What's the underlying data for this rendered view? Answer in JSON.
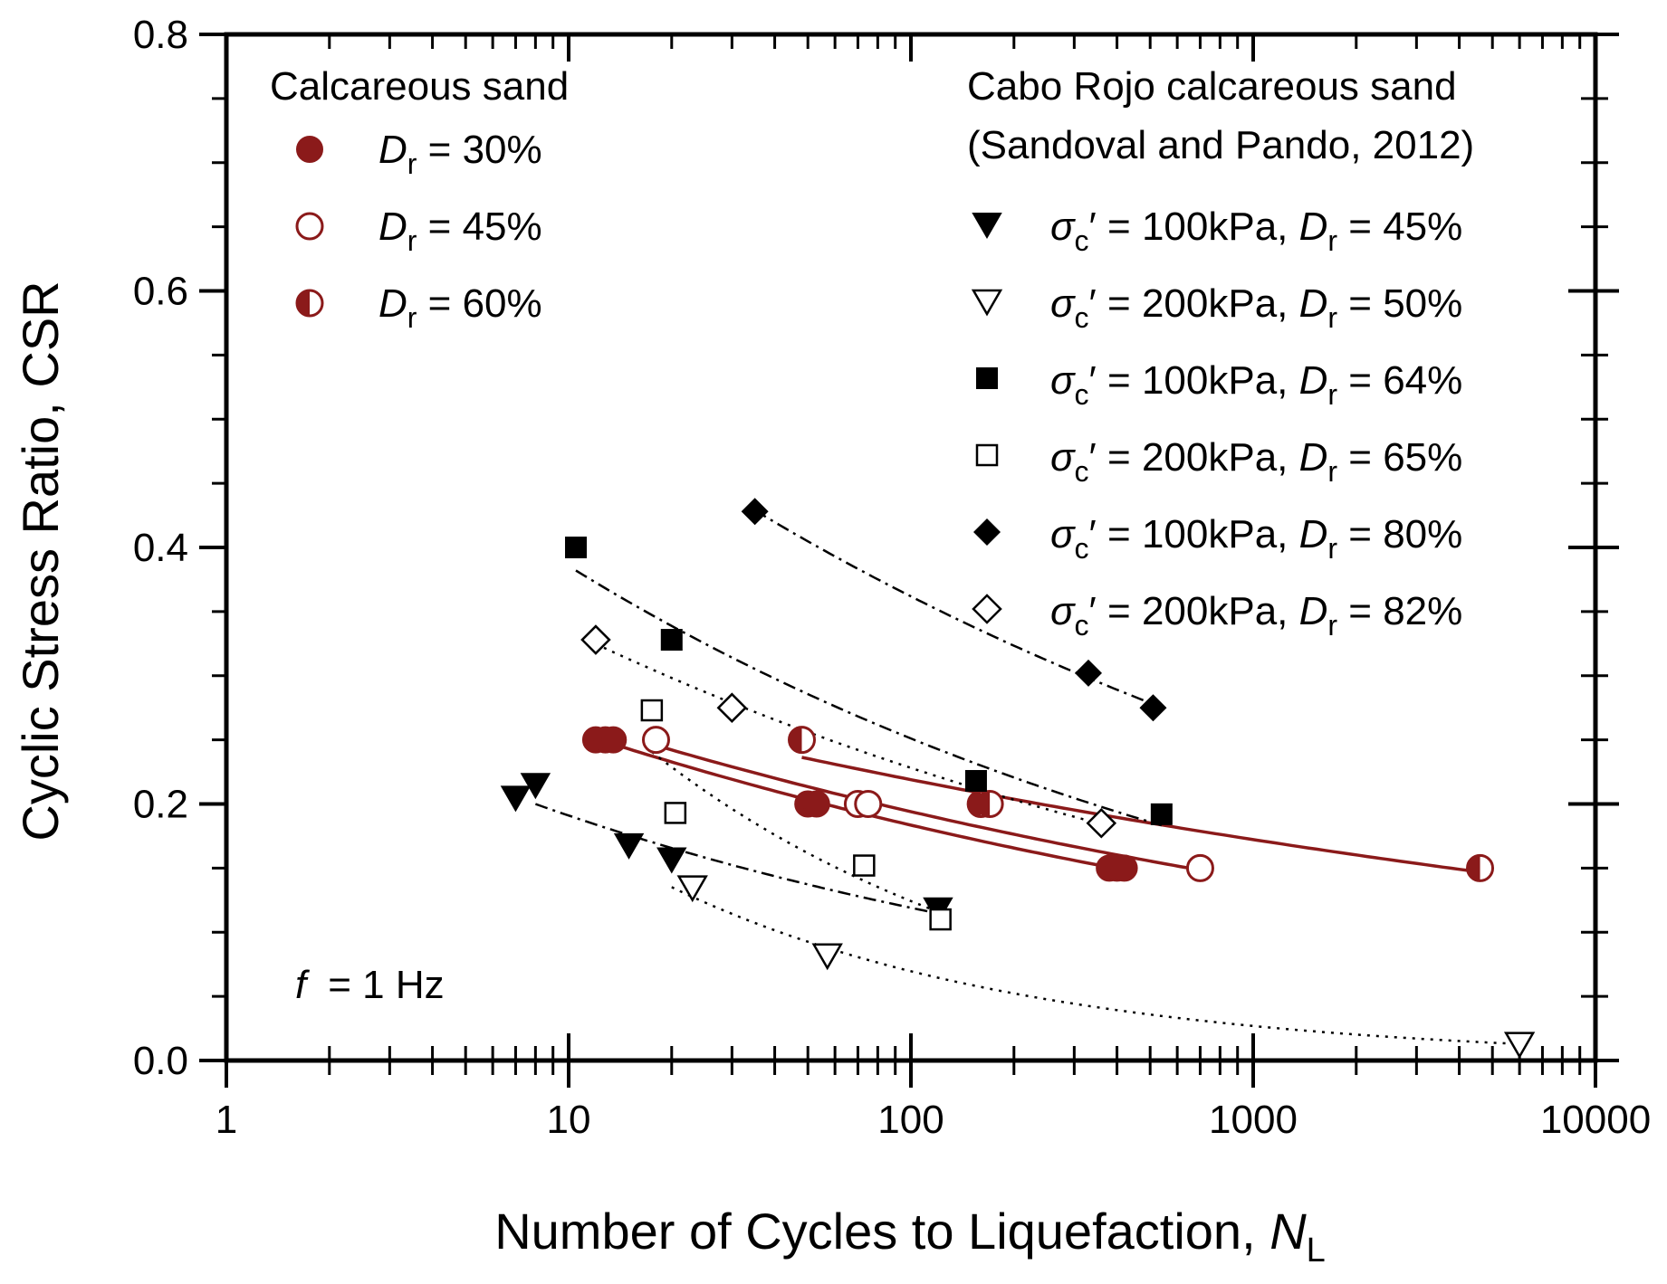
{
  "chart_data": {
    "type": "scatter",
    "xscale": "log",
    "xlim": [
      1,
      10000
    ],
    "ylim": [
      0,
      0.8
    ],
    "xticks": [
      "1",
      "10",
      "100",
      "1000",
      "10000"
    ],
    "yticks": [
      "0.0",
      "0.2",
      "0.4",
      "0.6",
      "0.8"
    ],
    "xlabel": "Number of Cycles to Liquefaction, ",
    "xlabel_sym": "N",
    "xlabel_sub": "L",
    "ylabel": "Cyclic Stress Ratio, CSR",
    "annotation": {
      "sym": "f",
      "text": "= 1 Hz"
    },
    "legend_left": {
      "title": "Calcareous sand",
      "entries": [
        {
          "sym": "D",
          "sub": "r",
          "text": " = 30%"
        },
        {
          "sym": "D",
          "sub": "r",
          "text": " = 45%"
        },
        {
          "sym": "D",
          "sub": "r",
          "text": " = 60%"
        }
      ]
    },
    "legend_right": {
      "title1": "Cabo Rojo calcareous sand",
      "title2": "(Sandoval and Pando, 2012)",
      "entries": [
        {
          "stress": "100kPa",
          "dr": " = 45%"
        },
        {
          "stress": "200kPa",
          "dr": " = 50%"
        },
        {
          "stress": "100kPa",
          "dr": " = 64%"
        },
        {
          "stress": "200kPa",
          "dr": " = 65%"
        },
        {
          "stress": "100kPa",
          "dr": " = 80%"
        },
        {
          "stress": "200kPa",
          "dr": " = 82%"
        }
      ]
    },
    "colors": {
      "red": "#8b1a1a",
      "black": "#000000"
    },
    "series": [
      {
        "id": "dr30",
        "marker": "circle-filled",
        "color": "red",
        "fit": "solid",
        "points": [
          [
            12,
            0.25
          ],
          [
            12.8,
            0.25
          ],
          [
            13.5,
            0.25
          ],
          [
            50,
            0.2
          ],
          [
            53,
            0.2
          ],
          [
            380,
            0.15
          ],
          [
            400,
            0.15
          ],
          [
            420,
            0.15
          ]
        ],
        "fit_range": [
          13,
          430
        ]
      },
      {
        "id": "dr45",
        "marker": "circle-open",
        "color": "red",
        "fit": "solid",
        "points": [
          [
            18,
            0.25
          ],
          [
            70,
            0.2
          ],
          [
            75,
            0.2
          ],
          [
            700,
            0.15
          ]
        ],
        "fit_range": [
          18,
          700
        ]
      },
      {
        "id": "dr60",
        "marker": "circle-half",
        "color": "red",
        "fit": "solid",
        "points": [
          [
            48,
            0.25
          ],
          [
            160,
            0.2
          ],
          [
            170,
            0.2
          ],
          [
            4600,
            0.15
          ]
        ],
        "fit_range": [
          48,
          4500
        ]
      },
      {
        "id": "s100-45",
        "marker": "tri-down-filled",
        "color": "black",
        "fit": "dashdot",
        "points": [
          [
            7,
            0.205
          ],
          [
            8,
            0.215
          ],
          [
            15,
            0.168
          ],
          [
            20,
            0.157
          ],
          [
            120,
            0.118
          ]
        ],
        "fit_range": [
          8,
          120
        ]
      },
      {
        "id": "s200-50",
        "marker": "tri-down-open",
        "color": "black",
        "fit": "dotted",
        "points": [
          [
            23,
            0.135
          ],
          [
            57,
            0.082
          ],
          [
            6000,
            0.013
          ]
        ],
        "fit_range": [
          20,
          6000
        ]
      },
      {
        "id": "s100-64",
        "marker": "square-filled",
        "color": "black",
        "fit": "dashdot",
        "points": [
          [
            10.5,
            0.4
          ],
          [
            20,
            0.328
          ],
          [
            155,
            0.218
          ],
          [
            540,
            0.192
          ]
        ],
        "fit_range": [
          10.5,
          540
        ]
      },
      {
        "id": "s200-65",
        "marker": "square-open",
        "color": "black",
        "fit": "dotted",
        "points": [
          [
            17.5,
            0.273
          ],
          [
            20.5,
            0.193
          ],
          [
            73,
            0.152
          ],
          [
            122,
            0.11
          ]
        ],
        "fit_range": [
          17.5,
          122
        ]
      },
      {
        "id": "s100-80",
        "marker": "diamond-filled",
        "color": "black",
        "fit": "dashdot",
        "points": [
          [
            35,
            0.428
          ],
          [
            330,
            0.302
          ],
          [
            510,
            0.275
          ]
        ],
        "fit_range": [
          35,
          510
        ]
      },
      {
        "id": "s200-82",
        "marker": "diamond-open",
        "color": "black",
        "fit": "dotted",
        "points": [
          [
            12,
            0.328
          ],
          [
            30,
            0.275
          ],
          [
            360,
            0.185
          ]
        ],
        "fit_range": [
          12,
          360
        ]
      }
    ]
  }
}
